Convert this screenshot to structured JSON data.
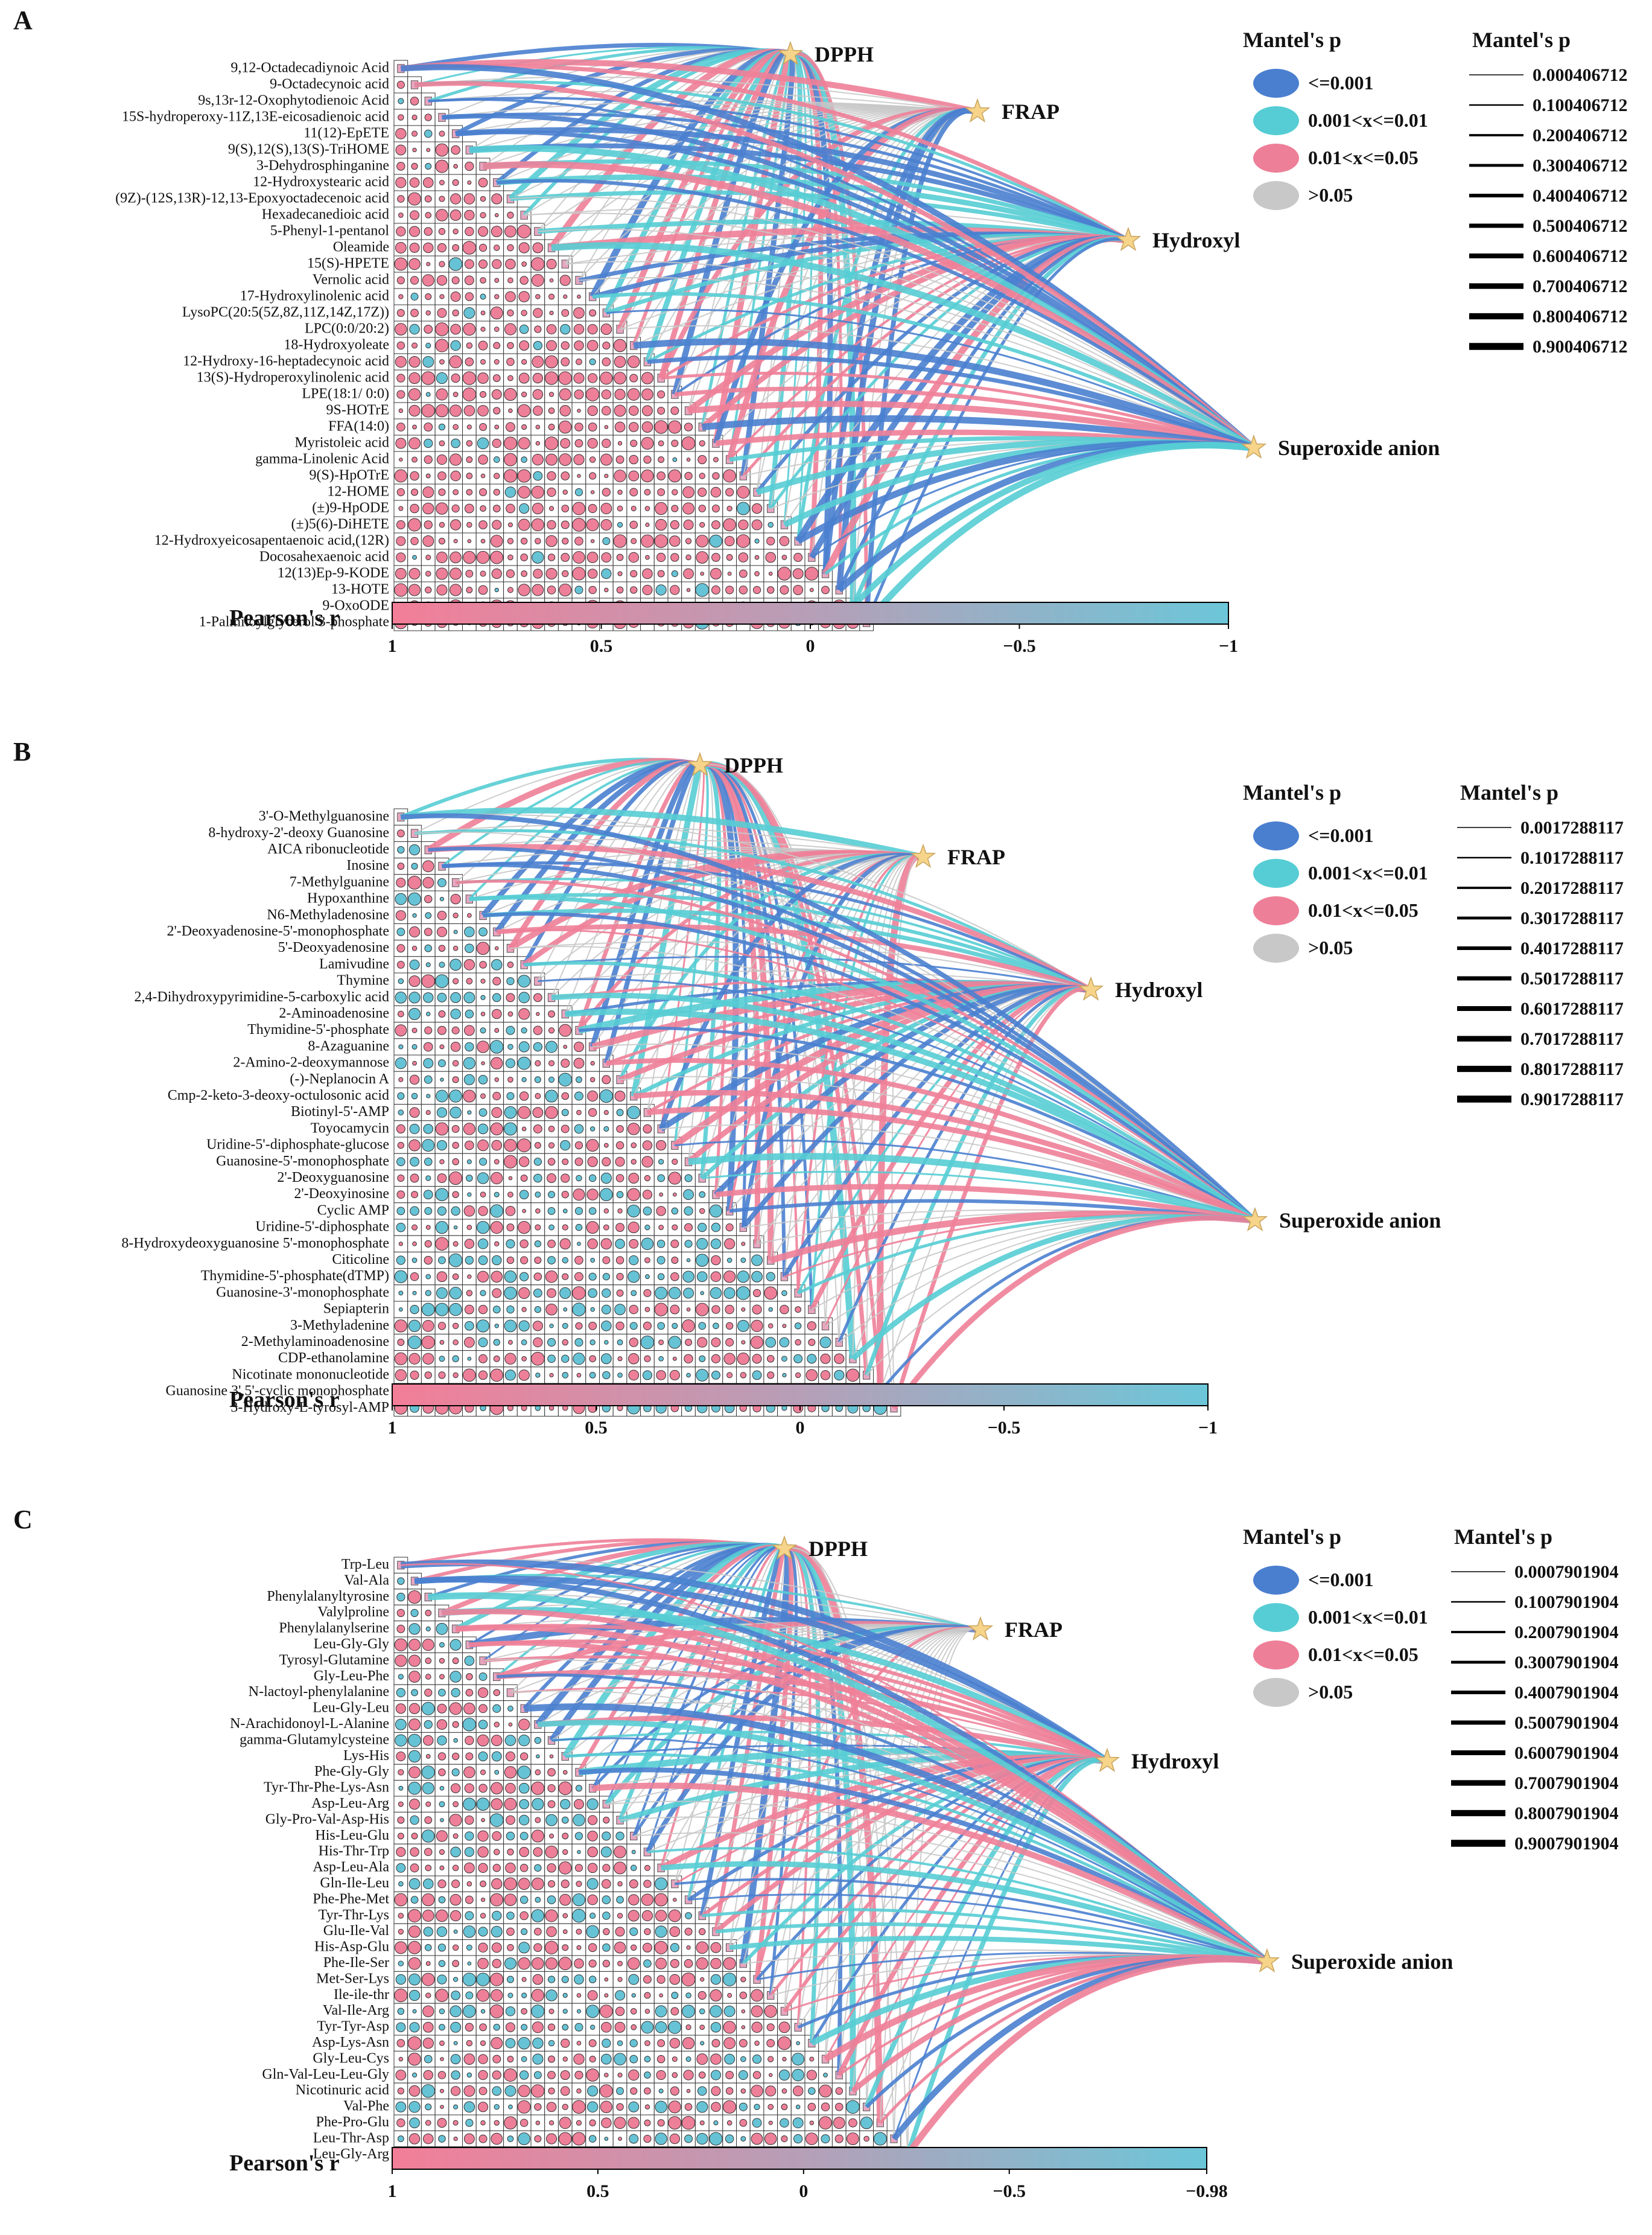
{
  "colors": {
    "p_001": "#4a7fcf",
    "p_01": "#56cdd4",
    "p_05": "#ee7f98",
    "p_ns": "#c8c8c8",
    "r_pos": "#ee7f98",
    "r_neg": "#66c3d6",
    "star": "#f6d48a",
    "grid": "#333333"
  },
  "legend_p_title": "Mantel's p",
  "legend_p_items": [
    "<=0.001",
    "0.001<x<=0.01",
    "0.01<x<=0.05",
    ">0.05"
  ],
  "colorbar_title": "Pearson's r",
  "colorbar_ticks": [
    "1",
    "0.5",
    "0",
    "−0.5"
  ],
  "chart_data": [
    {
      "type": "heatmap",
      "panel": "A",
      "colorbar_end": "−1",
      "env_vars": [
        "DPPH",
        "FRAP",
        "Hydroxyl",
        "Superoxide anion"
      ],
      "mantel_r_legend": [
        "0.000406712",
        "0.100406712",
        "0.200406712",
        "0.300406712",
        "0.400406712",
        "0.500406712",
        "0.600406712",
        "0.700406712",
        "0.800406712",
        "0.900406712"
      ],
      "variables": [
        "9,12-Octadecadiynoic Acid",
        "9-Octadecynoic acid",
        "9s,13r-12-Oxophytodienoic Acid",
        "15S-hydroperoxy-11Z,13E-eicosadienoic acid",
        "11(12)-EpETE",
        "9(S),12(S),13(S)-TriHOME",
        "3-Dehydrosphinganine",
        "12-Hydroxystearic acid",
        "(9Z)-(12S,13R)-12,13-Epoxyoctadecenoic acid",
        "Hexadecanedioic acid",
        "5-Phenyl-1-pentanol",
        "Oleamide",
        "15(S)-HPETE",
        "Vernolic acid",
        "17-Hydroxylinolenic acid",
        "LysoPC(20:5(5Z,8Z,11Z,14Z,17Z))",
        "LPC(0:0/20:2)",
        "18-Hydroxyoleate",
        "12-Hydroxy-16-heptadecynoic acid",
        "13(S)-Hydroperoxylinolenic acid",
        "LPE(18:1/ 0:0)",
        "9S-HOTrE",
        "FFA(14:0)",
        "Myristoleic acid",
        "gamma-Linolenic Acid",
        "9(S)-HpOTrE",
        "12-HOME",
        "(±)9-HpODE",
        "(±)5(6)-DiHETE",
        "12-Hydroxyeicosapentaenoic acid,(12R)",
        "Docosahexaenoic acid",
        "12(13)Ep-9-KODE",
        "13-HOTE",
        "9-OxoODE",
        "1-Palmitoylglycerol 3-phosphate"
      ]
    },
    {
      "type": "heatmap",
      "panel": "B",
      "colorbar_end": "−1",
      "env_vars": [
        "DPPH",
        "FRAP",
        "Hydroxyl",
        "Superoxide anion"
      ],
      "mantel_r_legend": [
        "0.0017288117",
        "0.1017288117",
        "0.2017288117",
        "0.3017288117",
        "0.4017288117",
        "0.5017288117",
        "0.6017288117",
        "0.7017288117",
        "0.8017288117",
        "0.9017288117"
      ],
      "variables": [
        "3'-O-Methylguanosine",
        "8-hydroxy-2'-deoxy Guanosine",
        "AICA ribonucleotide",
        "Inosine",
        "7-Methylguanine",
        "Hypoxanthine",
        "N6-Methyladenosine",
        "2'-Deoxyadenosine-5'-monophosphate",
        "5'-Deoxyadenosine",
        "Lamivudine",
        "Thymine",
        "2,4-Dihydroxypyrimidine-5-carboxylic acid",
        "2-Aminoadenosine",
        "Thymidine-5'-phosphate",
        "8-Azaguanine",
        "2-Amino-2-deoxymannose",
        "(-)-Neplanocin A",
        "Cmp-2-keto-3-deoxy-octulosonic acid",
        "Biotinyl-5'-AMP",
        "Toyocamycin",
        "Uridine-5'-diphosphate-glucose",
        "Guanosine-5'-monophosphate",
        "2'-Deoxyguanosine",
        "2'-Deoxyinosine",
        "Cyclic AMP",
        "Uridine-5'-diphosphate",
        "8-Hydroxydeoxyguanosine 5'-monophosphate",
        "Citicoline",
        "Thymidine-5'-phosphate(dTMP)",
        "Guanosine-3'-monophosphate",
        "Sepiapterin",
        "3-Methyladenine",
        "2-Methylaminoadenosine",
        "CDP-ethanolamine",
        "Nicotinate mononucleotide",
        "Guanosine 3',5'-cyclic monophosphate",
        "3-Hydroxy-L-tyrosyl-AMP"
      ]
    },
    {
      "type": "heatmap",
      "panel": "C",
      "colorbar_end": "−0.98",
      "env_vars": [
        "DPPH",
        "FRAP",
        "Hydroxyl",
        "Superoxide anion"
      ],
      "mantel_r_legend": [
        "0.0007901904",
        "0.1007901904",
        "0.2007901904",
        "0.3007901904",
        "0.4007901904",
        "0.5007901904",
        "0.6007901904",
        "0.7007901904",
        "0.8007901904",
        "0.9007901904"
      ],
      "variables": [
        "Trp-Leu",
        "Val-Ala",
        "Phenylalanyltyrosine",
        "Valylproline",
        "Phenylalanylserine",
        "Leu-Gly-Gly",
        "Tyrosyl-Glutamine",
        "Gly-Leu-Phe",
        "N-lactoyl-phenylalanine",
        "Leu-Gly-Leu",
        "N-Arachidonoyl-L-Alanine",
        "gamma-Glutamylcysteine",
        "Lys-His",
        "Phe-Gly-Gly",
        "Tyr-Thr-Phe-Lys-Asn",
        "Asp-Leu-Arg",
        "Gly-Pro-Val-Asp-His",
        "His-Leu-Glu",
        "His-Thr-Trp",
        "Asp-Leu-Ala",
        "Gln-Ile-Leu",
        "Phe-Phe-Met",
        "Tyr-Thr-Lys",
        "Glu-Ile-Val",
        "His-Asp-Glu",
        "Phe-Ile-Ser",
        "Met-Ser-Lys",
        "Ile-ile-thr",
        "Val-Ile-Arg",
        "Tyr-Tyr-Asp",
        "Asp-Lys-Asn",
        "Gly-Leu-Cys",
        "Gln-Val-Leu-Leu-Gly",
        "Nicotinuric acid",
        "Val-Phe",
        "Phe-Pro-Glu",
        "Leu-Thr-Asp",
        "Leu-Gly-Arg"
      ]
    }
  ]
}
